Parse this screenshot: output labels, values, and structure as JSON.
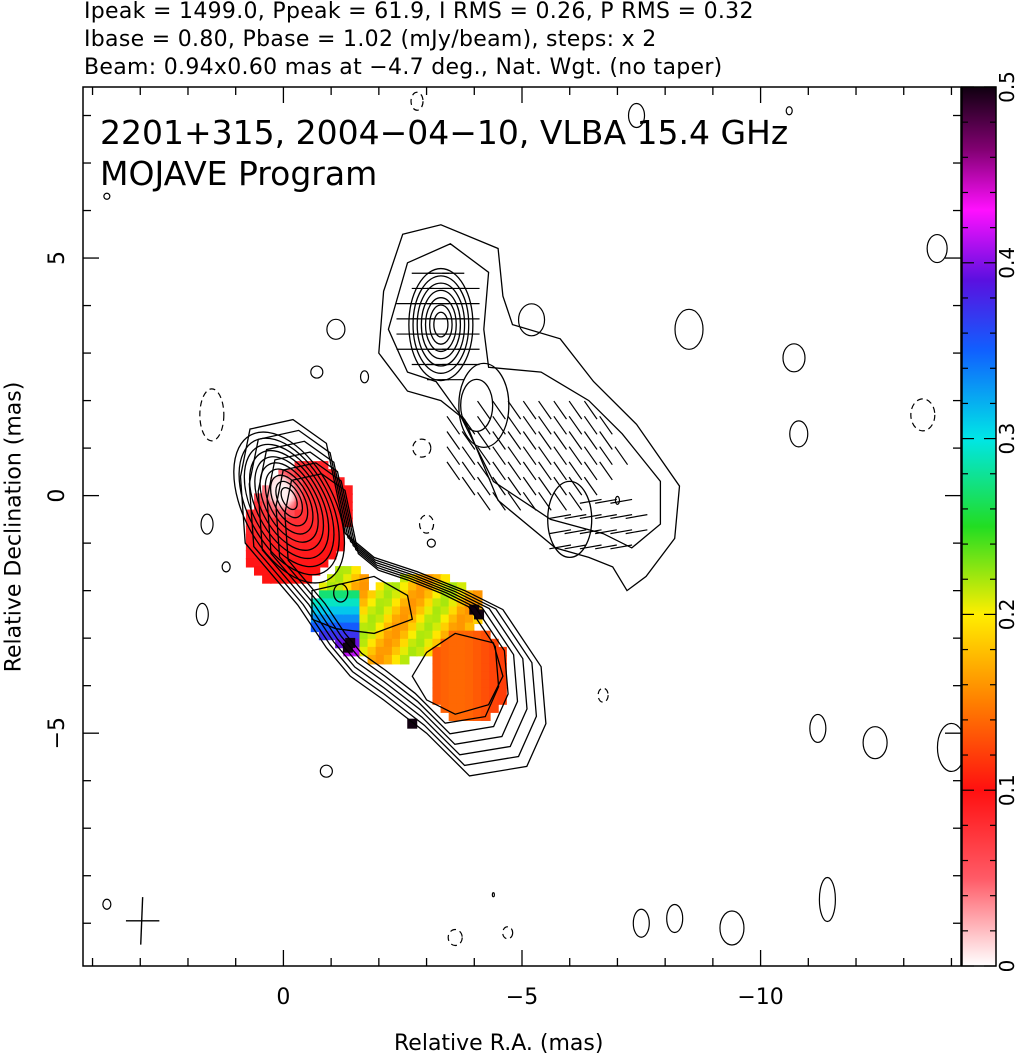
{
  "header": {
    "line1": "Ipeak = 1499.0, Ppeak = 61.9, I RMS = 0.26, P RMS = 0.32",
    "line2": "Ibase = 0.80, Pbase = 1.02 (mJy/beam), steps: x 2",
    "line3": "Beam: 0.94x0.60 mas at −4.7 deg., Nat. Wgt. (no taper)"
  },
  "chart_data": {
    "type": "heatmap",
    "title": "2201+315, 2004−04−10, VLBA 15.4 GHz",
    "subtitle": "MOJAVE Program",
    "xlabel": "Relative R.A. (mas)",
    "ylabel": "Relative Declination (mas)",
    "xlim": [
      4.2,
      -14.2
    ],
    "ylim": [
      -9.9,
      8.6
    ],
    "x_ticks": [
      {
        "value": 0,
        "label": "0"
      },
      {
        "value": -5,
        "label": "−5"
      },
      {
        "value": -10,
        "label": "−10"
      }
    ],
    "y_ticks": [
      {
        "value": 5,
        "label": "5"
      },
      {
        "value": 0,
        "label": "0"
      },
      {
        "value": -5,
        "label": "−5"
      }
    ],
    "colorbar": {
      "range": [
        0,
        0.5
      ],
      "ticks": [
        {
          "value": 0,
          "label": "0"
        },
        {
          "value": 0.1,
          "label": "0.1"
        },
        {
          "value": 0.2,
          "label": "0.2"
        },
        {
          "value": 0.3,
          "label": "0.3"
        },
        {
          "value": 0.4,
          "label": "0.4"
        },
        {
          "value": 0.5,
          "label": "0.5"
        }
      ]
    },
    "core": {
      "x": 0.0,
      "y": 0.0
    },
    "beam": {
      "major_mas": 0.94,
      "minor_mas": 0.6,
      "pa_deg": -4.7
    }
  }
}
